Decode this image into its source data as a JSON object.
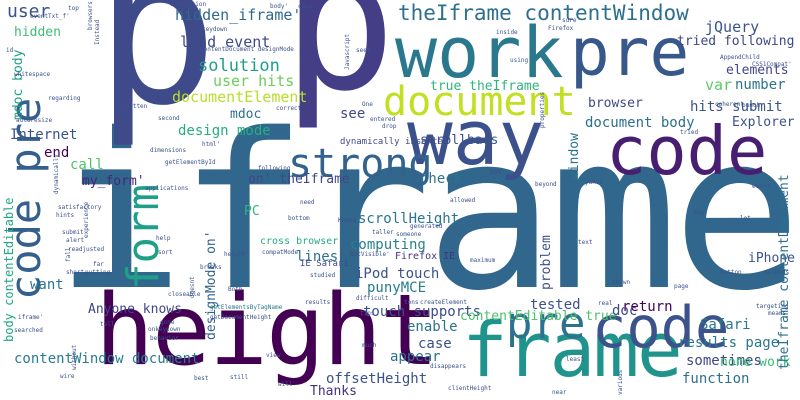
{
  "cloud": {
    "words": [
      {
        "text": "iframe",
        "color": "#31668d"
      },
      {
        "text": "height",
        "color": "#440154"
      },
      {
        "text": "p",
        "color": "#3e4a89"
      },
      {
        "text": "p",
        "color": "#433e85"
      },
      {
        "text": "frame",
        "color": "#20938c"
      },
      {
        "text": "work",
        "color": "#2a788e"
      },
      {
        "text": "way",
        "color": "#3b518b"
      },
      {
        "text": "code",
        "color": "#481f70"
      },
      {
        "text": "document",
        "color": "#c2df23"
      },
      {
        "text": "code",
        "color": "#3b528b"
      },
      {
        "text": "pre",
        "color": "#2c728e"
      },
      {
        "text": "pre",
        "color": "#38588c"
      },
      {
        "text": "code pre",
        "color": "#35608d"
      },
      {
        "text": "form",
        "color": "#1f9f88"
      },
      {
        "text": "strong",
        "color": "#33628d"
      },
      {
        "text": "theIframe contentWindow",
        "color": "#2d708e"
      },
      {
        "text": "hidden_iframe'",
        "color": "#31688e"
      },
      {
        "text": "load event",
        "color": "#3e4989"
      },
      {
        "text": "solution",
        "color": "#1f9e89"
      },
      {
        "text": "user hits",
        "color": "#6ccd5a"
      },
      {
        "text": "documentElement",
        "color": "#b8de29"
      },
      {
        "text": "design mode",
        "color": "#26ad81"
      },
      {
        "text": "document body",
        "color": "#2c718e"
      },
      {
        "text": "Explorer",
        "color": "#3b528b"
      },
      {
        "text": "hits submit",
        "color": "#3a548c"
      },
      {
        "text": "tried following",
        "color": "#3f4788"
      },
      {
        "text": "jQuery",
        "color": "#3a548c"
      },
      {
        "text": "number",
        "color": "#2d718e"
      },
      {
        "text": "elements",
        "color": "#404588"
      },
      {
        "text": "scrollbars",
        "color": "#3b528b"
      },
      {
        "text": "browser",
        "color": "#3e4a89"
      },
      {
        "text": "var",
        "color": "#5ec962"
      },
      {
        "text": "true theIframe",
        "color": "#31b57b"
      },
      {
        "text": "user",
        "color": "#3b518b"
      },
      {
        "text": "hidden",
        "color": "#3dbc74"
      },
      {
        "text": "mdoc body",
        "color": "#1fa088"
      },
      {
        "text": "mdoc",
        "color": "#2c718e"
      },
      {
        "text": "see",
        "color": "#3e4989"
      },
      {
        "text": "Internet",
        "color": "#3b528b"
      },
      {
        "text": "end",
        "color": "#440154"
      },
      {
        "text": "call",
        "color": "#4cc26c"
      },
      {
        "text": "my_form'",
        "color": "#482576"
      },
      {
        "text": "on' theIframe",
        "color": "#3f4889"
      },
      {
        "text": "check",
        "color": "#2c728e"
      },
      {
        "text": "computing",
        "color": "#26828e"
      },
      {
        "text": "iPod touch",
        "color": "#3b528b"
      },
      {
        "text": "Firefox IE",
        "color": "#46337e"
      },
      {
        "text": "scrollHeight",
        "color": "#2a768e"
      },
      {
        "text": "lines",
        "color": "#2c738e"
      },
      {
        "text": "punyMCE",
        "color": "#297b8e"
      },
      {
        "text": "problem",
        "color": "#3b528b"
      },
      {
        "text": "want",
        "color": "#2b758e"
      },
      {
        "text": "PC",
        "color": "#31b57b"
      },
      {
        "text": "cross browser",
        "color": "#25ab82"
      },
      {
        "text": "designMode on'",
        "color": "#32648e"
      },
      {
        "text": "Anyone knows",
        "color": "#3f4788"
      },
      {
        "text": "tested",
        "color": "#3b528b"
      },
      {
        "text": "return",
        "color": "#440154"
      },
      {
        "text": "touch supports",
        "color": "#3d4e8a"
      },
      {
        "text": "contentEditable true",
        "color": "#4ac16d"
      },
      {
        "text": "doc",
        "color": "#3e4989"
      },
      {
        "text": "enable",
        "color": "#2c728e"
      },
      {
        "text": "case",
        "color": "#3b528b"
      },
      {
        "text": "results page",
        "color": "#2a778e"
      },
      {
        "text": "Safari",
        "color": "#2a788e"
      },
      {
        "text": "iPhone",
        "color": "#3b528b"
      },
      {
        "text": "appear",
        "color": "#2c728e"
      },
      {
        "text": "sometimes",
        "color": "#3f4889"
      },
      {
        "text": "function",
        "color": "#2d708e"
      },
      {
        "text": "offsetHeight",
        "color": "#3b528b"
      },
      {
        "text": "contentWindow document",
        "color": "#287c8e"
      },
      {
        "text": "Thanks",
        "color": "#46307e"
      },
      {
        "text": "none work",
        "color": "#3dbc74"
      },
      {
        "text": "theIframe contentDocument",
        "color": "#2d708e"
      },
      {
        "text": "body contentEditable",
        "color": "#22a785"
      },
      {
        "text": "window",
        "color": "#2c728e"
      },
      {
        "text": "IE Safari",
        "color": "#3e4a89"
      },
      {
        "text": "dynamically inserted",
        "color": "#3e4a89"
      },
      {
        "text": "contentDocument designMode",
        "color": "#3b528b"
      },
      {
        "text": "getElementById",
        "color": "#3b528b"
      },
      {
        "text": "getDocumentHeight",
        "color": "#3b528b"
      },
      {
        "text": "getElementsByTagName",
        "color": "#2a788e"
      },
      {
        "text": "submission",
        "color": "#3b528b"
      },
      {
        "text": "browsers",
        "color": "#3b528b"
      },
      {
        "text": "eventTxt_f'",
        "color": "#3b528b"
      },
      {
        "text": "body'",
        "color": "#3b528b"
      },
      {
        "text": "top",
        "color": "#3b528b"
      },
      {
        "text": "Instead",
        "color": "#3b528b"
      },
      {
        "text": "id",
        "color": "#3b528b"
      },
      {
        "text": "whitespace",
        "color": "#3b528b"
      },
      {
        "text": "regarding",
        "color": "#3b528b"
      },
      {
        "text": "written",
        "color": "#3b528b"
      },
      {
        "text": "second",
        "color": "#3b528b"
      },
      {
        "text": "autoresize",
        "color": "#3b528b"
      },
      {
        "text": "dimensions",
        "color": "#3b528b"
      },
      {
        "text": "html'",
        "color": "#3b528b"
      },
      {
        "text": "applications",
        "color": "#3b528b"
      },
      {
        "text": "satisfactory",
        "color": "#3b528b"
      },
      {
        "text": "hints",
        "color": "#3b528b"
      },
      {
        "text": "submit",
        "color": "#3b528b"
      },
      {
        "text": "alert",
        "color": "#3b528b"
      },
      {
        "text": "readjusted",
        "color": "#3b528b"
      },
      {
        "text": "short",
        "color": "#3b528b"
      },
      {
        "text": "putting",
        "color": "#3b528b"
      },
      {
        "text": "far",
        "color": "#3b528b"
      },
      {
        "text": "iframe'",
        "color": "#3b528b"
      },
      {
        "text": "tell",
        "color": "#3b528b"
      },
      {
        "text": "searched",
        "color": "#3b528b"
      },
      {
        "text": "without",
        "color": "#3b528b"
      },
      {
        "text": "gone",
        "color": "#3b528b"
      },
      {
        "text": "onkeydown",
        "color": "#3b528b"
      },
      {
        "text": "behavior",
        "color": "#3b528b"
      },
      {
        "text": "best",
        "color": "#3b528b"
      },
      {
        "text": "still",
        "color": "#3b528b"
      },
      {
        "text": "view",
        "color": "#3b528b"
      },
      {
        "text": "correct",
        "color": "#3b528b"
      },
      {
        "text": "keydown",
        "color": "#3b528b"
      },
      {
        "text": "entered",
        "color": "#3b528b"
      },
      {
        "text": "drop",
        "color": "#3b528b"
      },
      {
        "text": "DOM",
        "color": "#3b528b"
      },
      {
        "text": "allowed",
        "color": "#3b528b"
      },
      {
        "text": "beyond",
        "color": "#3b528b"
      },
      {
        "text": "yahoo",
        "color": "#3b528b"
      },
      {
        "text": "key",
        "color": "#3b528b"
      },
      {
        "text": "lot",
        "color": "#3b528b"
      },
      {
        "text": "event",
        "color": "#3b528b"
      },
      {
        "text": "bunch",
        "color": "#3b528b"
      },
      {
        "text": "coherent",
        "color": "#3b528b"
      },
      {
        "text": "results",
        "color": "#3b528b"
      },
      {
        "text": "tips",
        "color": "#3b528b"
      },
      {
        "text": "difficult",
        "color": "#3b528b"
      },
      {
        "text": "createElement",
        "color": "#3b528b"
      },
      {
        "text": "tons",
        "color": "#3b528b"
      },
      {
        "text": "real",
        "color": "#3b528b"
      },
      {
        "text": "disappears",
        "color": "#3b528b"
      },
      {
        "text": "least",
        "color": "#3b528b"
      },
      {
        "text": "clientHeight",
        "color": "#3b528b"
      },
      {
        "text": "near",
        "color": "#3b528b"
      },
      {
        "text": "various",
        "color": "#3b528b"
      },
      {
        "text": "shown",
        "color": "#3b528b"
      },
      {
        "text": "page",
        "color": "#3b528b"
      },
      {
        "text": "targeting",
        "color": "#3b528b"
      },
      {
        "text": "means",
        "color": "#3b528b"
      },
      {
        "text": "button",
        "color": "#3b528b"
      },
      {
        "text": "methods",
        "color": "#3b528b"
      },
      {
        "text": "text",
        "color": "#3b528b"
      },
      {
        "text": "studied",
        "color": "#3b528b"
      },
      {
        "text": "maximum",
        "color": "#3b528b"
      },
      {
        "text": "compatMode",
        "color": "#3b528b"
      },
      {
        "text": "help",
        "color": "#3b528b"
      },
      {
        "text": "bottom",
        "color": "#3b528b"
      },
      {
        "text": "following",
        "color": "#3b528b"
      },
      {
        "text": "need",
        "color": "#3b528b"
      },
      {
        "text": "someone",
        "color": "#3b528b"
      },
      {
        "text": "generated",
        "color": "#3b528b"
      },
      {
        "text": "fall",
        "color": "#3b528b"
      },
      {
        "text": "experience",
        "color": "#3b528b"
      },
      {
        "text": "AppendChild",
        "color": "#3b528b"
      },
      {
        "text": "CSS1Compat'",
        "color": "#3b528b"
      },
      {
        "text": "seem",
        "color": "#3b528b"
      },
      {
        "text": "One",
        "color": "#3b528b"
      },
      {
        "text": "Javascript",
        "color": "#3b528b"
      },
      {
        "text": "using",
        "color": "#3b528b"
      },
      {
        "text": "sure",
        "color": "#3b528b"
      },
      {
        "text": "inside",
        "color": "#3b528b"
      },
      {
        "text": "case",
        "color": "#3b528b"
      },
      {
        "text": "Firefox",
        "color": "#3b528b"
      },
      {
        "text": "tried",
        "color": "#3b528b"
      },
      {
        "text": "properties",
        "color": "#3b528b"
      },
      {
        "text": "much",
        "color": "#3b528b"
      },
      {
        "text": "sort",
        "color": "#3b528b"
      },
      {
        "text": "NotVisible'",
        "color": "#3b528b"
      },
      {
        "text": "taller",
        "color": "#3b528b"
      },
      {
        "text": "breaks",
        "color": "#3b528b"
      },
      {
        "text": "Keeps",
        "color": "#3b528b"
      },
      {
        "text": "dynamically",
        "color": "#3b528b"
      },
      {
        "text": "closeable",
        "color": "#3b528b"
      },
      {
        "text": "doesnt",
        "color": "#3b528b"
      },
      {
        "text": "height'",
        "color": "#3b528b"
      },
      {
        "text": "Both",
        "color": "#3b528b"
      },
      {
        "text": "will",
        "color": "#3b528b"
      },
      {
        "text": "wire",
        "color": "#3b528b"
      }
    ]
  }
}
